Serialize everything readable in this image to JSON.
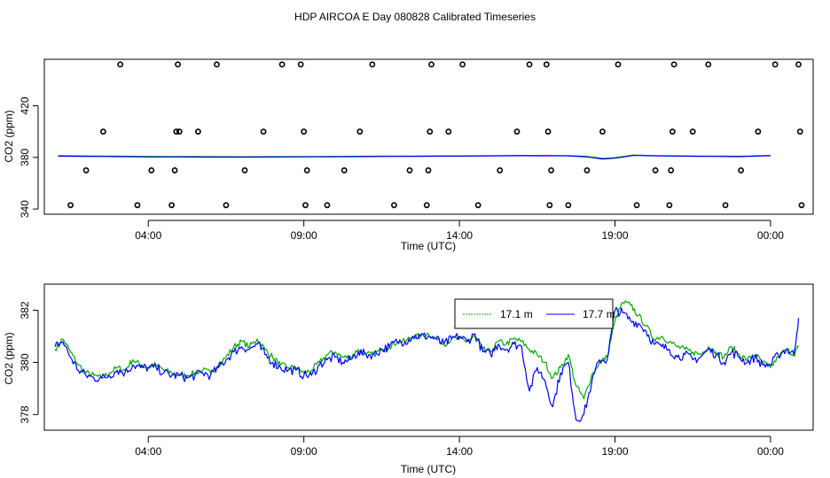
{
  "title": "HDP AIRCOA E  Day 080828  Calibrated Timeseries",
  "chart_data": [
    {
      "type": "scatter",
      "xlabel": "Time (UTC)",
      "ylabel": "CO2 (ppm)",
      "xlim": [
        0,
        24
      ],
      "ylim": [
        336,
        456
      ],
      "x_ticks": [
        {
          "x": 3,
          "label": "04:00"
        },
        {
          "x": 8,
          "label": "09:00"
        },
        {
          "x": 13,
          "label": "14:00"
        },
        {
          "x": 18,
          "label": "19:00"
        },
        {
          "x": 23,
          "label": "00:00"
        }
      ],
      "y_ticks": [
        {
          "y": 340,
          "label": "340"
        },
        {
          "y": 380,
          "label": "380"
        },
        {
          "y": 420,
          "label": "420"
        }
      ],
      "legend": "none",
      "series": [
        {
          "color": "#00aa00",
          "style": "line",
          "x": [
            0.1,
            3,
            6,
            9,
            11,
            13,
            15,
            16.5,
            17.1,
            17.6,
            18,
            18.6,
            19,
            20,
            21,
            22,
            23
          ],
          "y": [
            381.3,
            380.8,
            380.5,
            380.8,
            381.0,
            381.2,
            381.5,
            381.4,
            380.8,
            379.2,
            379.8,
            381.8,
            381.5,
            381.2,
            381.0,
            380.9,
            381.6
          ]
        },
        {
          "color": "#0000ff",
          "style": "line",
          "x": [
            0.1,
            3,
            6,
            9,
            11,
            13,
            15,
            16.5,
            17.1,
            17.6,
            18,
            18.6,
            19,
            20,
            21,
            22,
            23
          ],
          "y": [
            381.0,
            380.4,
            380.2,
            380.5,
            380.8,
            381.0,
            381.3,
            381.2,
            380.4,
            378.8,
            379.4,
            381.6,
            381.3,
            381.0,
            380.8,
            380.6,
            381.3
          ]
        },
        {
          "color": "#000000",
          "style": "points",
          "x": [
            0.5,
            1.0,
            1.55,
            2.1,
            2.65,
            3.1,
            3.75,
            3.85,
            3.9,
            3.95,
            4.0,
            4.6,
            5.2,
            5.5,
            6.1,
            6.7,
            7.3,
            7.9,
            8.0,
            8.05,
            8.1,
            8.75,
            9.3,
            9.8,
            10.2,
            10.9,
            11.4,
            11.95,
            12.0,
            12.05,
            12.1,
            12.65,
            13.1,
            13.6,
            14.3,
            14.85,
            15.25,
            15.8,
            15.85,
            15.9,
            15.95,
            16.5,
            17.1,
            17.6,
            18.1,
            18.7,
            19.3,
            19.75,
            19.8,
            19.85,
            19.9,
            20.5,
            21.0,
            21.55,
            22.05,
            22.6,
            23.15,
            23.9,
            23.95,
            24.0
          ],
          "y": [
            343,
            370,
            400,
            452,
            343,
            370,
            343,
            370,
            400,
            452,
            400,
            400,
            452,
            343,
            370,
            400,
            452,
            452,
            400,
            343,
            370,
            343,
            370,
            400,
            452,
            343,
            370,
            343,
            370,
            400,
            452,
            400,
            452,
            343,
            370,
            400,
            452,
            452,
            400,
            343,
            370,
            343,
            370,
            400,
            452,
            343,
            370,
            343,
            370,
            400,
            452,
            400,
            452,
            343,
            370,
            400,
            452,
            452,
            400,
            343
          ]
        }
      ]
    },
    {
      "type": "line",
      "xlabel": "Time (UTC)",
      "ylabel": "CO2 (ppm)",
      "xlim": [
        0,
        24
      ],
      "ylim": [
        377.4,
        383.0
      ],
      "x_ticks": [
        {
          "x": 3,
          "label": "04:00"
        },
        {
          "x": 8,
          "label": "09:00"
        },
        {
          "x": 13,
          "label": "14:00"
        },
        {
          "x": 18,
          "label": "19:00"
        },
        {
          "x": 23,
          "label": "00:00"
        }
      ],
      "y_ticks": [
        {
          "y": 378,
          "label": "378"
        },
        {
          "y": 380,
          "label": "380"
        },
        {
          "y": 382,
          "label": "382"
        }
      ],
      "legend": "top-right",
      "series": [
        {
          "name": "17.1 m",
          "color": "#00aa00",
          "x": [
            0,
            0.25,
            0.5,
            0.75,
            1,
            1.25,
            1.5,
            1.75,
            2,
            2.25,
            2.5,
            2.75,
            3,
            3.25,
            3.5,
            3.75,
            4,
            4.25,
            4.5,
            4.75,
            5,
            5.25,
            5.5,
            5.75,
            6,
            6.25,
            6.5,
            6.75,
            7,
            7.25,
            7.5,
            7.75,
            8,
            8.25,
            8.5,
            8.75,
            9,
            9.25,
            9.5,
            9.75,
            10,
            10.25,
            10.5,
            10.75,
            11,
            11.25,
            11.5,
            11.75,
            12,
            12.25,
            12.5,
            12.75,
            13,
            13.25,
            13.5,
            13.75,
            14,
            14.25,
            14.5,
            14.75,
            15,
            15.25,
            15.5,
            15.75,
            16,
            16.25,
            16.5,
            16.75,
            17,
            17.25,
            17.5,
            17.75,
            18,
            18.25,
            18.5,
            18.75,
            19,
            19.25,
            19.5,
            19.75,
            20,
            20.25,
            20.5,
            20.75,
            21,
            21.25,
            21.5,
            21.75,
            22,
            22.25,
            22.5,
            22.75,
            23,
            23.25,
            23.5,
            23.75,
            23.9
          ],
          "y": [
            380.5,
            380.9,
            380.4,
            379.9,
            379.6,
            379.5,
            379.4,
            379.6,
            379.8,
            379.7,
            380.1,
            379.9,
            379.8,
            379.9,
            379.7,
            379.6,
            379.5,
            379.5,
            379.6,
            379.7,
            379.6,
            379.9,
            380.2,
            380.6,
            380.8,
            380.6,
            380.9,
            380.5,
            380.2,
            379.9,
            379.8,
            379.8,
            379.6,
            379.7,
            380.0,
            380.3,
            380.4,
            380.2,
            380.2,
            380.5,
            380.3,
            380.3,
            380.5,
            380.6,
            380.8,
            380.8,
            381.0,
            381.0,
            381.1,
            380.9,
            380.7,
            380.9,
            380.9,
            380.8,
            381.0,
            380.5,
            380.4,
            380.8,
            380.7,
            380.9,
            380.8,
            380.5,
            380.3,
            380.0,
            379.4,
            379.8,
            380.3,
            379.1,
            378.6,
            379.5,
            380.0,
            380.2,
            381.6,
            382.3,
            382.2,
            381.8,
            381.4,
            380.9,
            381.0,
            380.8,
            380.6,
            380.5,
            380.4,
            380.3,
            380.6,
            380.4,
            380.2,
            380.6,
            380.3,
            380.1,
            380.3,
            380.0,
            379.8,
            380.2,
            380.5,
            380.3,
            380.6
          ],
          "noise": 0.12
        },
        {
          "name": "17.7 m",
          "color": "#0000ff",
          "x": [
            0,
            0.25,
            0.5,
            0.75,
            1,
            1.25,
            1.5,
            1.75,
            2,
            2.25,
            2.5,
            2.75,
            3,
            3.25,
            3.5,
            3.75,
            4,
            4.25,
            4.5,
            4.75,
            5,
            5.25,
            5.5,
            5.75,
            6,
            6.25,
            6.5,
            6.75,
            7,
            7.25,
            7.5,
            7.75,
            8,
            8.25,
            8.5,
            8.75,
            9,
            9.25,
            9.5,
            9.75,
            10,
            10.25,
            10.5,
            10.75,
            11,
            11.25,
            11.5,
            11.75,
            12,
            12.25,
            12.5,
            12.75,
            13,
            13.25,
            13.5,
            13.75,
            14,
            14.25,
            14.5,
            14.75,
            15,
            15.25,
            15.5,
            15.75,
            16,
            16.25,
            16.5,
            16.75,
            17,
            17.25,
            17.5,
            17.75,
            18,
            18.25,
            18.5,
            18.75,
            19,
            19.25,
            19.5,
            19.75,
            20,
            20.25,
            20.5,
            20.75,
            21,
            21.25,
            21.5,
            21.75,
            22,
            22.25,
            22.5,
            22.75,
            23,
            23.25,
            23.5,
            23.75,
            23.9
          ],
          "y": [
            380.6,
            380.8,
            380.2,
            379.7,
            379.5,
            379.4,
            379.4,
            379.5,
            379.7,
            379.6,
            379.9,
            379.8,
            379.8,
            379.8,
            379.6,
            379.5,
            379.5,
            379.4,
            379.5,
            379.6,
            379.5,
            379.8,
            380.1,
            380.4,
            380.6,
            380.5,
            380.7,
            380.3,
            380.0,
            379.8,
            379.7,
            379.7,
            379.5,
            379.5,
            379.9,
            380.1,
            380.2,
            380.0,
            380.1,
            380.4,
            380.3,
            380.3,
            380.5,
            380.6,
            380.8,
            380.8,
            381.0,
            381.0,
            381.0,
            380.9,
            380.7,
            380.9,
            381.0,
            380.8,
            381.1,
            380.4,
            380.3,
            380.7,
            380.5,
            380.7,
            380.6,
            378.9,
            379.8,
            379.3,
            378.3,
            379.6,
            380.0,
            377.8,
            378.0,
            379.2,
            380.1,
            380.1,
            382.0,
            381.9,
            381.6,
            381.5,
            381.2,
            380.7,
            380.6,
            380.5,
            380.2,
            380.3,
            380.1,
            380.2,
            380.5,
            380.3,
            380.0,
            380.4,
            380.2,
            380.0,
            380.2,
            379.9,
            379.9,
            380.3,
            380.5,
            380.3,
            381.7
          ],
          "noise": 0.18
        }
      ]
    }
  ]
}
